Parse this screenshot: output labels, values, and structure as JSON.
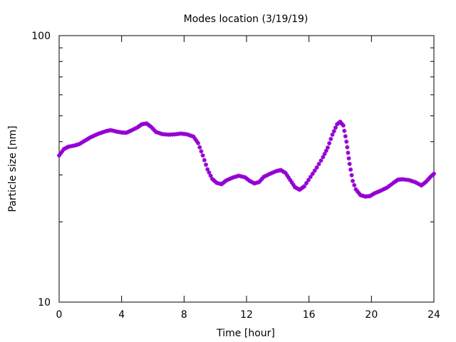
{
  "chart_data": {
    "type": "scatter",
    "title": "Modes location (3/19/19)",
    "xlabel": "Time [hour]",
    "ylabel": "Particle size [nm]",
    "xlim": [
      0,
      24
    ],
    "ylim": [
      10,
      100
    ],
    "yscale": "log",
    "grid": false,
    "xticks": [
      0,
      4,
      8,
      12,
      16,
      20,
      24
    ],
    "xtick_labels": [
      "0",
      "4",
      "8",
      "12",
      "16",
      "20",
      "24"
    ],
    "yticks": [
      10,
      100
    ],
    "ytick_labels": [
      "10",
      "100"
    ],
    "marker_color": "#9400D3",
    "series": [
      {
        "points": [
          [
            0.0,
            35.5
          ],
          [
            0.3,
            37.5
          ],
          [
            0.6,
            38.3
          ],
          [
            1.0,
            38.7
          ],
          [
            1.3,
            39.2
          ],
          [
            1.7,
            40.5
          ],
          [
            2.0,
            41.5
          ],
          [
            2.5,
            42.8
          ],
          [
            3.0,
            43.8
          ],
          [
            3.3,
            44.2
          ],
          [
            3.7,
            43.6
          ],
          [
            4.0,
            43.3
          ],
          [
            4.3,
            43.2
          ],
          [
            4.6,
            44.0
          ],
          [
            5.0,
            45.2
          ],
          [
            5.3,
            46.5
          ],
          [
            5.6,
            46.8
          ],
          [
            5.9,
            45.4
          ],
          [
            6.2,
            43.5
          ],
          [
            6.6,
            42.7
          ],
          [
            7.0,
            42.5
          ],
          [
            7.4,
            42.6
          ],
          [
            7.8,
            42.9
          ],
          [
            8.2,
            42.6
          ],
          [
            8.6,
            41.8
          ],
          [
            8.9,
            39.5
          ],
          [
            9.2,
            35.5
          ],
          [
            9.5,
            31.5
          ],
          [
            9.8,
            29.0
          ],
          [
            10.1,
            28.0
          ],
          [
            10.4,
            27.7
          ],
          [
            10.7,
            28.6
          ],
          [
            11.1,
            29.3
          ],
          [
            11.5,
            29.8
          ],
          [
            11.9,
            29.4
          ],
          [
            12.2,
            28.5
          ],
          [
            12.5,
            27.9
          ],
          [
            12.8,
            28.2
          ],
          [
            13.1,
            29.5
          ],
          [
            13.5,
            30.3
          ],
          [
            13.9,
            31.0
          ],
          [
            14.2,
            31.3
          ],
          [
            14.5,
            30.5
          ],
          [
            14.8,
            28.7
          ],
          [
            15.1,
            27.0
          ],
          [
            15.4,
            26.4
          ],
          [
            15.7,
            27.2
          ],
          [
            16.1,
            29.5
          ],
          [
            16.5,
            32.0
          ],
          [
            16.9,
            35.0
          ],
          [
            17.2,
            38.0
          ],
          [
            17.5,
            42.5
          ],
          [
            17.8,
            46.5
          ],
          [
            18.0,
            47.5
          ],
          [
            18.2,
            46.0
          ],
          [
            18.4,
            40.0
          ],
          [
            18.6,
            33.0
          ],
          [
            18.8,
            28.5
          ],
          [
            19.0,
            26.5
          ],
          [
            19.3,
            25.2
          ],
          [
            19.6,
            24.9
          ],
          [
            19.9,
            25.0
          ],
          [
            20.2,
            25.6
          ],
          [
            20.6,
            26.2
          ],
          [
            21.0,
            26.9
          ],
          [
            21.4,
            28.0
          ],
          [
            21.7,
            28.8
          ],
          [
            22.0,
            28.9
          ],
          [
            22.4,
            28.7
          ],
          [
            22.8,
            28.2
          ],
          [
            23.2,
            27.4
          ],
          [
            23.5,
            28.3
          ],
          [
            23.8,
            29.6
          ],
          [
            24.0,
            30.3
          ]
        ]
      }
    ]
  }
}
